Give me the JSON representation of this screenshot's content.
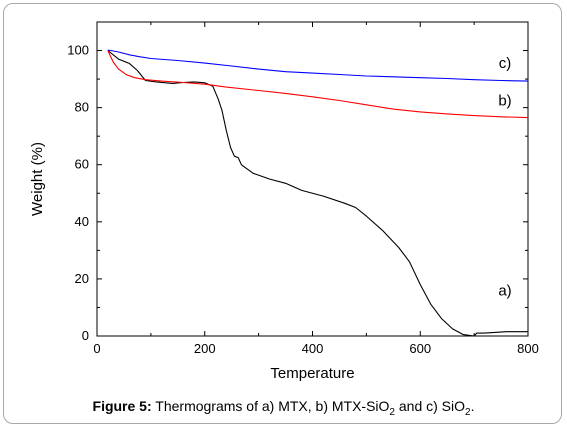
{
  "chart_data": {
    "type": "line",
    "xlabel": "Temperature",
    "ylabel": "Weight (%)",
    "xlim": [
      0,
      800
    ],
    "ylim": [
      0,
      110
    ],
    "xticks": [
      0,
      200,
      400,
      600,
      800
    ],
    "yticks": [
      0,
      20,
      40,
      60,
      80,
      100
    ],
    "grid": false,
    "legend": "none",
    "series": [
      {
        "name": "a)",
        "color": "#000000",
        "x": [
          20,
          40,
          60,
          75,
          90,
          110,
          140,
          160,
          180,
          200,
          215,
          225,
          232,
          240,
          248,
          255,
          262,
          268,
          275,
          290,
          320,
          350,
          380,
          420,
          460,
          480,
          500,
          530,
          560,
          580,
          600,
          620,
          640,
          660,
          680,
          700,
          705,
          720,
          760,
          800
        ],
        "y": [
          100,
          97,
          95.5,
          93,
          89.5,
          89,
          88.5,
          88.8,
          89,
          88.7,
          87.5,
          83,
          79,
          72,
          66,
          63,
          62.5,
          60,
          59,
          57,
          55,
          53.5,
          51,
          49,
          46.5,
          45,
          42,
          37,
          31,
          26,
          18,
          11,
          6,
          2.5,
          0.5,
          0,
          1,
          1,
          1.5,
          1.5
        ]
      },
      {
        "name": "b)",
        "color": "#ff0000",
        "x": [
          20,
          30,
          40,
          55,
          70,
          90,
          120,
          160,
          200,
          240,
          300,
          350,
          400,
          450,
          500,
          550,
          600,
          650,
          700,
          750,
          800
        ],
        "y": [
          100,
          96,
          93.5,
          91.5,
          90.5,
          89.8,
          89.3,
          88.8,
          88.2,
          87.2,
          86,
          85,
          83.8,
          82.5,
          81,
          79.5,
          78.5,
          77.8,
          77.2,
          76.8,
          76.5
        ]
      },
      {
        "name": "c)",
        "color": "#0000ff",
        "x": [
          20,
          40,
          60,
          80,
          100,
          150,
          200,
          250,
          300,
          350,
          400,
          450,
          500,
          550,
          600,
          650,
          700,
          750,
          800
        ],
        "y": [
          100.2,
          99.5,
          98.5,
          97.8,
          97.2,
          96.5,
          95.6,
          94.6,
          93.5,
          92.6,
          92.1,
          91.6,
          91.1,
          90.8,
          90.5,
          90.2,
          89.8,
          89.5,
          89.3
        ]
      }
    ]
  },
  "caption": {
    "label": "Figure 5:",
    "text_1": " Thermograms of a) MTX, b) MTX-SiO",
    "sub_1": "2",
    "text_2": " and c) SiO",
    "sub_2": "2",
    "text_3": "."
  }
}
